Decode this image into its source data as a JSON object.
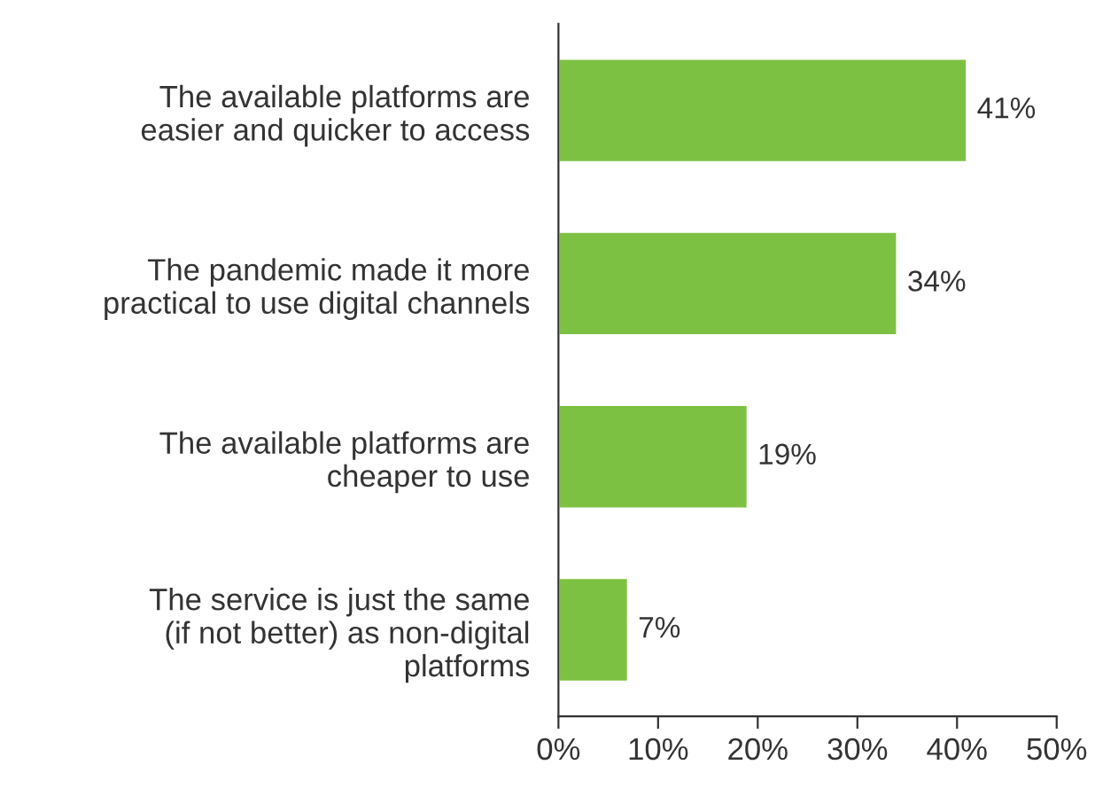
{
  "chart_data": {
    "type": "bar",
    "orientation": "horizontal",
    "categories": [
      "The available platforms are\neasier and quicker to access",
      "The pandemic made it more\npractical to use digital channels",
      "The available platforms are\ncheaper to use",
      "The service is just the same\n(if not better) as non-digital\nplatforms"
    ],
    "values": [
      41,
      34,
      19,
      7
    ],
    "value_labels": [
      "41%",
      "34%",
      "19%",
      "7%"
    ],
    "color": "#7dc142",
    "xlim": [
      0,
      50
    ],
    "xticks": [
      {
        "value": 0,
        "label": "0%"
      },
      {
        "value": 10,
        "label": "10%"
      },
      {
        "value": 20,
        "label": "20%"
      },
      {
        "value": 30,
        "label": "30%"
      },
      {
        "value": 40,
        "label": "40%"
      },
      {
        "value": 50,
        "label": "50%"
      }
    ],
    "grid": false,
    "legend": false
  }
}
